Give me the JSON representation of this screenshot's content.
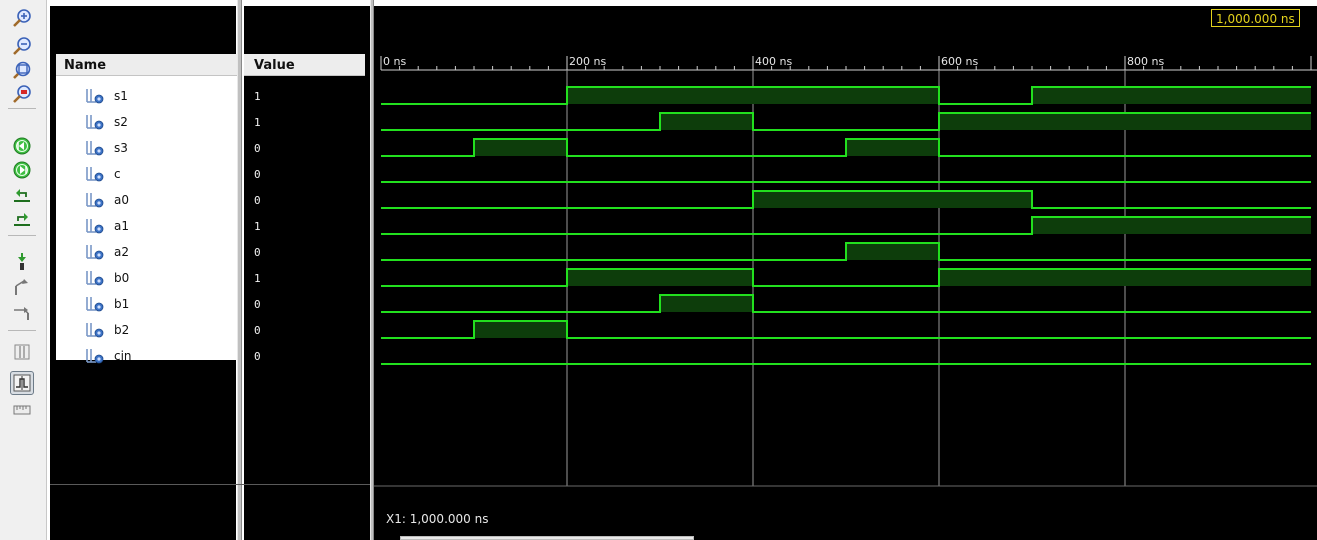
{
  "toolbar": {
    "buttons": [
      {
        "name": "zoom-in-icon"
      },
      {
        "name": "zoom-out-icon"
      },
      {
        "name": "zoom-fit-icon"
      },
      {
        "name": "zoom-to-cursor-icon"
      },
      {
        "name": "go-to-time-zero-icon"
      },
      {
        "name": "go-to-latest-time-icon"
      },
      {
        "name": "previous-transition-icon"
      },
      {
        "name": "next-transition-icon"
      },
      {
        "name": "add-marker-icon"
      },
      {
        "name": "previous-marker-icon"
      },
      {
        "name": "next-marker-icon"
      },
      {
        "name": "swap-cursors-icon"
      },
      {
        "name": "snap-to-transition-icon",
        "active": true
      },
      {
        "name": "floating-ruler-icon"
      }
    ]
  },
  "columns": {
    "name_header": "Name",
    "value_header": "Value"
  },
  "cursor": {
    "time_label": "1,000.000 ns",
    "x1_readout": "X1: 1,000.000 ns"
  },
  "timeline": {
    "ticks": [
      {
        "t": 0,
        "label": "0 ns"
      },
      {
        "t": 200,
        "label": "200 ns"
      },
      {
        "t": 400,
        "label": "400 ns"
      },
      {
        "t": 600,
        "label": "600 ns"
      },
      {
        "t": 800,
        "label": "800 ns"
      }
    ]
  },
  "colors": {
    "wave_line": "#22e01e",
    "wave_fill": "#0d3d0b",
    "grid": "#9a9a9a",
    "cursor_label": "#e3d21c"
  },
  "signals": [
    {
      "name": "s1",
      "value": "1",
      "transitions": [
        [
          0,
          0
        ],
        [
          200,
          1
        ],
        [
          600,
          0
        ],
        [
          700,
          1
        ]
      ]
    },
    {
      "name": "s2",
      "value": "1",
      "transitions": [
        [
          0,
          0
        ],
        [
          300,
          1
        ],
        [
          400,
          0
        ],
        [
          600,
          1
        ]
      ]
    },
    {
      "name": "s3",
      "value": "0",
      "transitions": [
        [
          0,
          0
        ],
        [
          100,
          1
        ],
        [
          200,
          0
        ],
        [
          500,
          1
        ],
        [
          600,
          0
        ]
      ]
    },
    {
      "name": "c",
      "value": "0",
      "transitions": [
        [
          0,
          0
        ]
      ]
    },
    {
      "name": "a0",
      "value": "0",
      "transitions": [
        [
          0,
          0
        ],
        [
          400,
          1
        ],
        [
          700,
          0
        ]
      ]
    },
    {
      "name": "a1",
      "value": "1",
      "transitions": [
        [
          0,
          0
        ],
        [
          700,
          1
        ]
      ]
    },
    {
      "name": "a2",
      "value": "0",
      "transitions": [
        [
          0,
          0
        ],
        [
          500,
          1
        ],
        [
          600,
          0
        ]
      ]
    },
    {
      "name": "b0",
      "value": "1",
      "transitions": [
        [
          0,
          0
        ],
        [
          200,
          1
        ],
        [
          400,
          0
        ],
        [
          600,
          1
        ]
      ]
    },
    {
      "name": "b1",
      "value": "0",
      "transitions": [
        [
          0,
          0
        ],
        [
          300,
          1
        ],
        [
          400,
          0
        ]
      ]
    },
    {
      "name": "b2",
      "value": "0",
      "transitions": [
        [
          0,
          0
        ],
        [
          100,
          1
        ],
        [
          200,
          0
        ]
      ]
    },
    {
      "name": "cin",
      "value": "0",
      "transitions": [
        [
          0,
          0
        ]
      ]
    }
  ]
}
